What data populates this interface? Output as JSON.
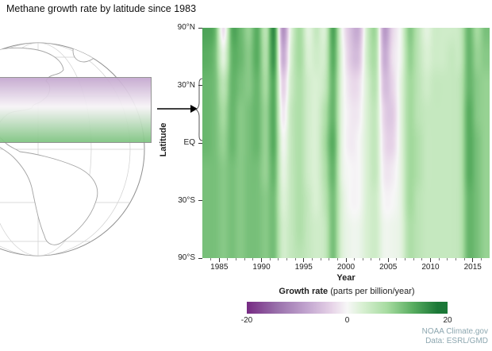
{
  "title": "Methane growth rate by latitude since 1983",
  "globe": {
    "band": {
      "top_color": "#c4a7cf",
      "mid_color": "#f7f4f7",
      "bottom_color": "#7ec480",
      "border_color": "#8c8c8c"
    }
  },
  "axes": {
    "y_label": "Latitude",
    "x_label": "Year",
    "y_ticks": [
      {
        "label": "90°N",
        "sin": 1
      },
      {
        "label": "30°N",
        "sin": 0.5
      },
      {
        "label": "EQ",
        "sin": 0
      },
      {
        "label": "30°S",
        "sin": -0.5
      },
      {
        "label": "90°S",
        "sin": -1
      }
    ],
    "x_major_ticks": [
      1985,
      1990,
      1995,
      2000,
      2005,
      2010,
      2015
    ]
  },
  "legend": {
    "title": "Growth rate",
    "subtitle": " (parts per billion/year)",
    "tick_labels": [
      "-20",
      "0",
      "20"
    ],
    "tick_positions_pct": [
      0,
      50,
      100
    ]
  },
  "credits": {
    "line1": "NOAA Climate.gov",
    "line2": "Data: ESRL/GMD",
    "color": "#8da7b0"
  },
  "chart_data": {
    "type": "heatmap",
    "title": "Methane growth rate by latitude since 1983",
    "xlabel": "Year",
    "ylabel": "Latitude",
    "units": "parts per billion/year",
    "x_range": [
      1983,
      2017
    ],
    "y_scale": "sine_latitude",
    "value_range": [
      -20,
      20
    ],
    "years": [
      1983,
      1984,
      1985,
      1986,
      1987,
      1988,
      1989,
      1990,
      1991,
      1992,
      1993,
      1994,
      1995,
      1996,
      1997,
      1998,
      1999,
      2000,
      2001,
      2002,
      2003,
      2004,
      2005,
      2006,
      2007,
      2008,
      2009,
      2010,
      2011,
      2012,
      2013,
      2014,
      2015,
      2016
    ],
    "rows": [
      {
        "sin_lat": 1.0,
        "values": [
          14,
          12,
          -2,
          13,
          12,
          9,
          13,
          6,
          16,
          -10,
          2,
          8,
          2,
          5,
          3,
          14,
          1,
          -5,
          -7,
          4,
          8,
          -9,
          -3,
          1,
          10,
          6,
          2,
          4,
          4,
          4,
          5,
          12,
          8,
          11
        ]
      },
      {
        "sin_lat": 0.75,
        "values": [
          13,
          11,
          2,
          12,
          12,
          10,
          13,
          7,
          15,
          -7,
          3,
          8,
          3,
          4,
          4,
          13,
          2,
          -4,
          -5,
          4,
          7,
          -7,
          -2,
          1,
          9,
          6,
          3,
          4,
          4,
          5,
          5,
          12,
          9,
          10
        ]
      },
      {
        "sin_lat": 0.5,
        "values": [
          12,
          11,
          6,
          12,
          11,
          10,
          12,
          8,
          13,
          -3,
          4,
          7,
          4,
          3,
          5,
          12,
          2,
          -2,
          -2,
          3,
          6,
          -5,
          -3,
          2,
          8,
          6,
          4,
          5,
          5,
          5,
          6,
          12,
          10,
          9
        ]
      },
      {
        "sin_lat": 0.25,
        "values": [
          12,
          11,
          8,
          12,
          10,
          11,
          12,
          9,
          13,
          -1,
          5,
          7,
          4,
          3,
          7,
          12,
          2,
          -1,
          -1,
          3,
          5,
          -3,
          -4,
          2,
          8,
          6,
          5,
          5,
          5,
          5,
          6,
          13,
          10,
          9
        ]
      },
      {
        "sin_lat": 0.0,
        "values": [
          12,
          11,
          9,
          12,
          10,
          11,
          12,
          9,
          13,
          1,
          5,
          7,
          4,
          3,
          8,
          13,
          2,
          -1,
          0,
          3,
          5,
          -2,
          -3,
          2,
          8,
          7,
          5,
          5,
          5,
          5,
          6,
          13,
          11,
          9
        ]
      },
      {
        "sin_lat": -0.25,
        "values": [
          11,
          11,
          10,
          11,
          10,
          11,
          11,
          9,
          12,
          2,
          5,
          7,
          4,
          3,
          7,
          12,
          2,
          0,
          0,
          3,
          5,
          -1,
          -1,
          2,
          8,
          7,
          5,
          5,
          5,
          5,
          6,
          13,
          11,
          9
        ]
      },
      {
        "sin_lat": -0.5,
        "values": [
          11,
          11,
          10,
          11,
          10,
          11,
          11,
          10,
          11,
          3,
          5,
          7,
          5,
          3,
          6,
          11,
          3,
          0,
          0,
          3,
          4,
          0,
          0,
          2,
          8,
          6,
          5,
          5,
          5,
          5,
          6,
          12,
          11,
          9
        ]
      },
      {
        "sin_lat": -0.75,
        "values": [
          11,
          11,
          10,
          11,
          10,
          11,
          11,
          10,
          11,
          4,
          5,
          7,
          5,
          4,
          5,
          11,
          3,
          1,
          1,
          3,
          4,
          1,
          1,
          2,
          7,
          6,
          5,
          5,
          5,
          5,
          6,
          12,
          11,
          9
        ]
      },
      {
        "sin_lat": -1.0,
        "values": [
          11,
          11,
          10,
          11,
          10,
          11,
          11,
          10,
          11,
          4,
          5,
          6,
          5,
          4,
          5,
          11,
          3,
          1,
          1,
          3,
          4,
          1,
          1,
          2,
          7,
          6,
          5,
          5,
          5,
          5,
          6,
          12,
          11,
          9
        ]
      }
    ],
    "colormap_stops": [
      {
        "v": -20,
        "c": "#762a83"
      },
      {
        "v": -14,
        "c": "#9970ab"
      },
      {
        "v": -8,
        "c": "#c2a5cf"
      },
      {
        "v": -3,
        "c": "#e7d4e8"
      },
      {
        "v": 0,
        "c": "#f7f7f7"
      },
      {
        "v": 3,
        "c": "#d9f0d3"
      },
      {
        "v": 8,
        "c": "#a6dba0"
      },
      {
        "v": 13,
        "c": "#5aae61"
      },
      {
        "v": 18,
        "c": "#1b7837"
      },
      {
        "v": 22,
        "c": "#00441b"
      }
    ]
  }
}
